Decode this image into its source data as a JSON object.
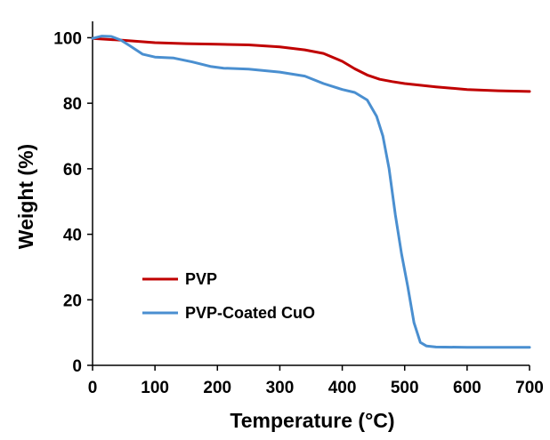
{
  "chart_data": {
    "type": "line",
    "title": "",
    "xlabel": "Temperature (°C)",
    "ylabel": "Weight (%)",
    "xlim": [
      0,
      700
    ],
    "ylim": [
      0,
      105
    ],
    "xticks": [
      0,
      100,
      200,
      300,
      400,
      500,
      600,
      700
    ],
    "yticks": [
      0,
      20,
      40,
      60,
      80,
      100
    ],
    "grid": false,
    "legend_position": "bottom-left",
    "series": [
      {
        "name": "PVP",
        "color": "#c00000",
        "points": [
          [
            0,
            99.8
          ],
          [
            50,
            99.2
          ],
          [
            100,
            98.5
          ],
          [
            150,
            98.2
          ],
          [
            200,
            98.0
          ],
          [
            250,
            97.8
          ],
          [
            300,
            97.2
          ],
          [
            340,
            96.3
          ],
          [
            370,
            95.2
          ],
          [
            400,
            92.8
          ],
          [
            420,
            90.5
          ],
          [
            440,
            88.6
          ],
          [
            460,
            87.3
          ],
          [
            480,
            86.6
          ],
          [
            500,
            86.0
          ],
          [
            550,
            85.0
          ],
          [
            600,
            84.2
          ],
          [
            650,
            83.8
          ],
          [
            700,
            83.6
          ]
        ]
      },
      {
        "name": "PVP-Coated CuO",
        "color": "#4a8fd0",
        "points": [
          [
            0,
            99.8
          ],
          [
            15,
            100.5
          ],
          [
            30,
            100.4
          ],
          [
            45,
            99.3
          ],
          [
            60,
            97.5
          ],
          [
            80,
            95.0
          ],
          [
            100,
            94.1
          ],
          [
            130,
            93.8
          ],
          [
            160,
            92.6
          ],
          [
            190,
            91.2
          ],
          [
            210,
            90.7
          ],
          [
            250,
            90.4
          ],
          [
            300,
            89.5
          ],
          [
            340,
            88.3
          ],
          [
            370,
            86.0
          ],
          [
            400,
            84.2
          ],
          [
            420,
            83.3
          ],
          [
            440,
            81.0
          ],
          [
            455,
            76.0
          ],
          [
            465,
            70.0
          ],
          [
            475,
            60.0
          ],
          [
            485,
            46.0
          ],
          [
            495,
            34.0
          ],
          [
            505,
            24.0
          ],
          [
            515,
            13.0
          ],
          [
            525,
            7.0
          ],
          [
            535,
            5.9
          ],
          [
            550,
            5.6
          ],
          [
            600,
            5.5
          ],
          [
            650,
            5.5
          ],
          [
            700,
            5.5
          ]
        ]
      }
    ]
  }
}
